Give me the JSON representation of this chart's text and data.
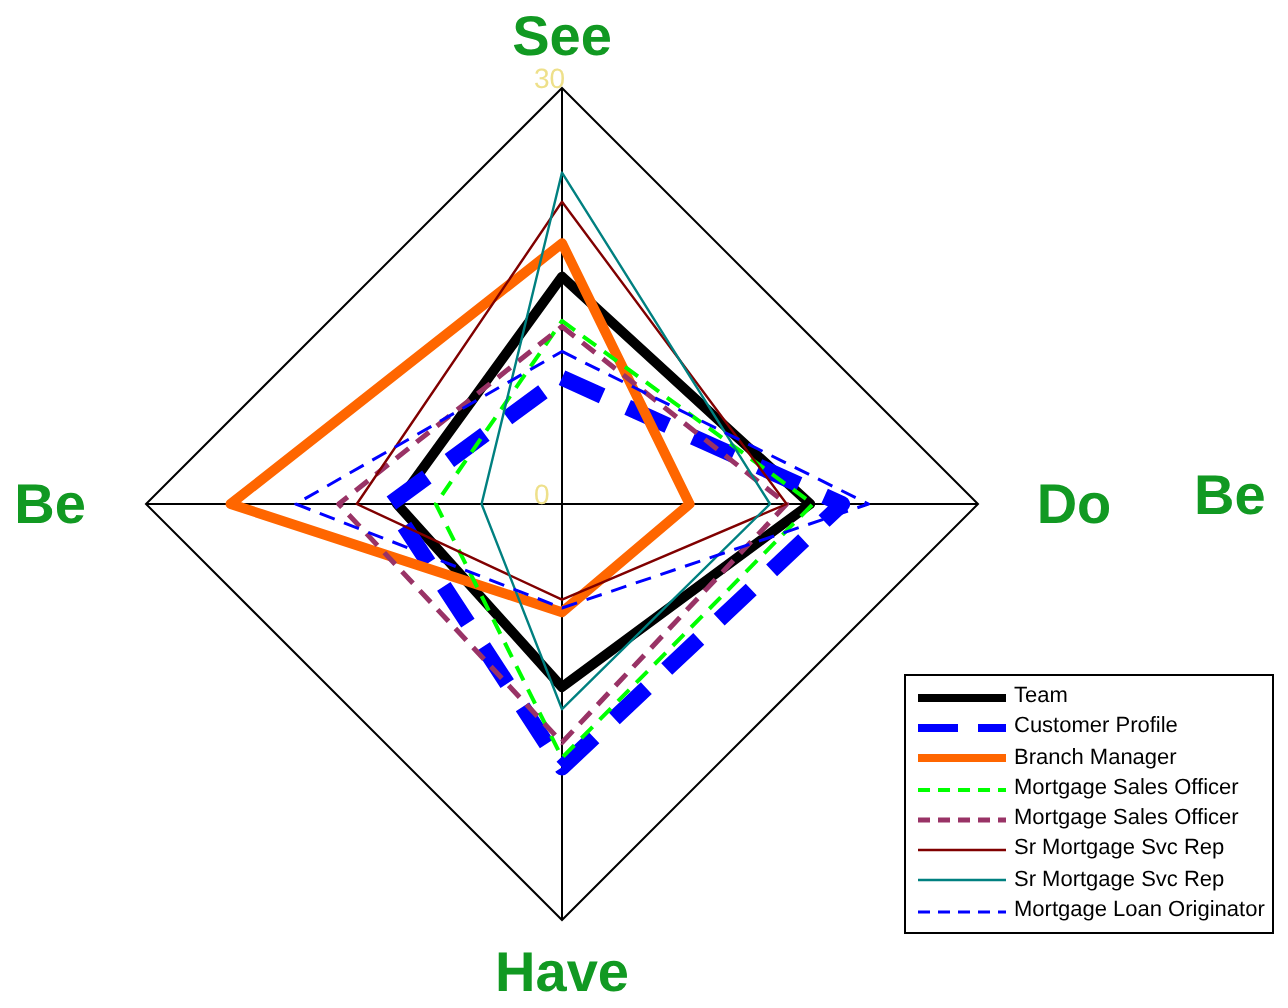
{
  "chart_data": {
    "type": "radar",
    "categories": [
      "See",
      "Do",
      "Have",
      "Be"
    ],
    "ylim": [
      0,
      30
    ],
    "yticks": [
      0,
      30
    ],
    "grid": true,
    "legend": "bottom right",
    "annotations": [
      "Be"
    ],
    "series": [
      {
        "name": "Team",
        "color": "#000000",
        "line_style": "solid",
        "values": [
          16.4,
          17.9,
          13.2,
          11.9
        ]
      },
      {
        "name": "Customer Profile",
        "color": "#0000ff",
        "line_style": "dashed",
        "values": [
          9.1,
          20.2,
          19,
          12.4
        ]
      },
      {
        "name": "Branch Manager",
        "color": "#ff6600",
        "line_style": "solid",
        "values": [
          18.8,
          9.2,
          7.8,
          23.9
        ]
      },
      {
        "name": "Mortgage Sales Officer",
        "color": "#00ff00",
        "line_style": "dashed",
        "values": [
          13.2,
          18.1,
          18.3,
          9.1
        ]
      },
      {
        "name": "Mortgage Sales Officer",
        "color": "#993366",
        "line_style": "dashed",
        "values": [
          12.8,
          16.2,
          17.2,
          16.1
        ]
      },
      {
        "name": "Sr Mortgage Svc Rep",
        "color": "#800000",
        "line_style": "solid",
        "values": [
          21.8,
          16.2,
          6.9,
          14.8
        ]
      },
      {
        "name": "Sr Mortgage Svc Rep",
        "color": "#008080",
        "line_style": "solid",
        "values": [
          23.9,
          15,
          14.8,
          5.8
        ]
      },
      {
        "name": "Mortgage Loan Originator",
        "color": "#0000ff",
        "line_style": "dashed",
        "values": [
          11,
          22.1,
          7.5,
          19.2
        ]
      }
    ]
  }
}
